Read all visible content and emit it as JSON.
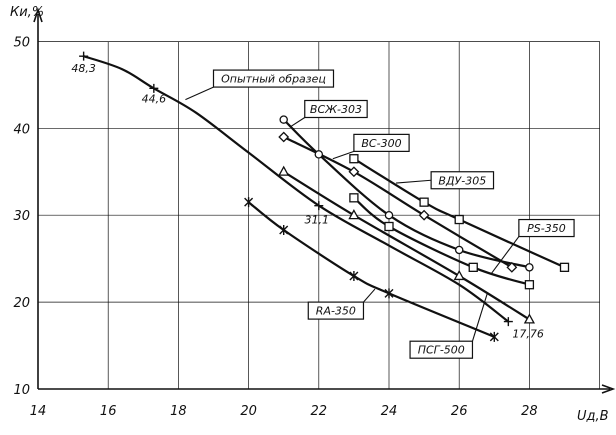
{
  "chart_data": {
    "type": "line",
    "title": "",
    "xlabel": "Uд,В",
    "ylabel": "Ки,%",
    "xlim": [
      14,
      30
    ],
    "ylim": [
      10,
      50
    ],
    "x_ticks": [
      14,
      16,
      18,
      20,
      22,
      24,
      26,
      28
    ],
    "y_ticks": [
      10,
      20,
      30,
      40,
      50
    ],
    "grid": true,
    "series": [
      {
        "name": "Опытный образец",
        "marker": "plus",
        "markers": [
          [
            15.3,
            48.3
          ],
          [
            17.3,
            44.6
          ],
          [
            22.0,
            31.1
          ],
          [
            27.4,
            17.76
          ]
        ],
        "curve": [
          [
            15.3,
            48.3
          ],
          [
            16.4,
            46.8
          ],
          [
            17.3,
            44.6
          ],
          [
            18.5,
            41.8
          ],
          [
            20.0,
            37.2
          ],
          [
            22.0,
            31.1
          ],
          [
            24.0,
            26.5
          ],
          [
            26.0,
            22.0
          ],
          [
            27.4,
            17.76
          ]
        ],
        "point_labels": [
          {
            "x": 15.3,
            "y": 48.3,
            "text": "48,3"
          },
          {
            "x": 17.3,
            "y": 44.6,
            "text": "44,6"
          },
          {
            "x": 22.0,
            "y": 31.1,
            "text": "31,1"
          },
          {
            "x": 27.4,
            "y": 17.76,
            "text": "17,76"
          }
        ]
      },
      {
        "name": "ВСЖ-303",
        "marker": "circle",
        "markers": [
          [
            21.0,
            41.0
          ],
          [
            22.0,
            37.0
          ],
          [
            24.0,
            30.0
          ],
          [
            26.0,
            26.0
          ],
          [
            28.0,
            24.0
          ]
        ],
        "curve": [
          [
            21.0,
            41.0
          ],
          [
            22.0,
            37.0
          ],
          [
            24.0,
            30.0
          ],
          [
            26.0,
            26.0
          ],
          [
            28.0,
            24.0
          ]
        ]
      },
      {
        "name": "ВС-300",
        "marker": "diamond",
        "markers": [
          [
            21.0,
            39.0
          ],
          [
            23.0,
            35.0
          ],
          [
            25.0,
            30.0
          ],
          [
            27.5,
            24.0
          ]
        ],
        "curve": [
          [
            21.0,
            39.0
          ],
          [
            23.0,
            35.0
          ],
          [
            25.0,
            30.0
          ],
          [
            27.5,
            24.0
          ]
        ]
      },
      {
        "name": "ВДУ-305",
        "marker": "square",
        "markers": [
          [
            23.0,
            36.5
          ],
          [
            25.0,
            31.5
          ],
          [
            26.0,
            29.5
          ],
          [
            29.0,
            24.0
          ]
        ],
        "curve": [
          [
            23.0,
            36.5
          ],
          [
            25.0,
            31.5
          ],
          [
            26.0,
            29.5
          ],
          [
            29.0,
            24.0
          ]
        ]
      },
      {
        "name": "PS-350",
        "marker": "square",
        "markers": [
          [
            23.0,
            32.0
          ],
          [
            24.0,
            28.7
          ],
          [
            26.4,
            24.0
          ],
          [
            28.0,
            22.0
          ]
        ],
        "curve": [
          [
            23.0,
            32.0
          ],
          [
            24.0,
            28.7
          ],
          [
            26.4,
            24.0
          ],
          [
            28.0,
            22.0
          ]
        ]
      },
      {
        "name": "ПСГ-500",
        "marker": "triangle",
        "markers": [
          [
            21.0,
            35.0
          ],
          [
            23.0,
            30.0
          ],
          [
            26.0,
            23.0
          ],
          [
            28.0,
            18.0
          ]
        ],
        "curve": [
          [
            21.0,
            35.0
          ],
          [
            23.0,
            30.0
          ],
          [
            26.0,
            23.0
          ],
          [
            28.0,
            18.0
          ]
        ]
      },
      {
        "name": "RA-350",
        "marker": "asterisk",
        "markers": [
          [
            20.0,
            31.5
          ],
          [
            21.0,
            28.3
          ],
          [
            23.0,
            23.0
          ],
          [
            24.0,
            21.0
          ],
          [
            27.0,
            16.0
          ]
        ],
        "curve": [
          [
            20.0,
            31.5
          ],
          [
            21.0,
            28.3
          ],
          [
            23.0,
            23.0
          ],
          [
            24.0,
            21.0
          ],
          [
            27.0,
            16.0
          ]
        ]
      }
    ],
    "callouts": [
      {
        "series": "Опытный образец",
        "text": "Опытный образец",
        "box": [
          19.0,
          46.7
        ],
        "target": [
          18.2,
          43.3
        ]
      },
      {
        "series": "ВСЖ-303",
        "text": "ВСЖ-303",
        "box": [
          21.6,
          43.2
        ],
        "target": [
          21.2,
          40.2
        ]
      },
      {
        "series": "ВС-300",
        "text": "ВС-300",
        "box": [
          23.0,
          39.3
        ],
        "target": [
          22.4,
          36.5
        ]
      },
      {
        "series": "ВДУ-305",
        "text": "ВДУ-305",
        "box": [
          25.2,
          35.0
        ],
        "target": [
          24.2,
          33.7
        ]
      },
      {
        "series": "PS-350",
        "text": "PS-350",
        "box": [
          27.7,
          29.5
        ],
        "target": [
          26.9,
          23.2
        ]
      },
      {
        "series": "RA-350",
        "text": "RA-350",
        "box": [
          21.7,
          20.0
        ],
        "target": [
          23.6,
          21.5
        ]
      },
      {
        "series": "ПСГ-500",
        "text": "ПСГ-500",
        "box": [
          24.6,
          15.5
        ],
        "target": [
          26.8,
          21.0
        ]
      }
    ]
  }
}
